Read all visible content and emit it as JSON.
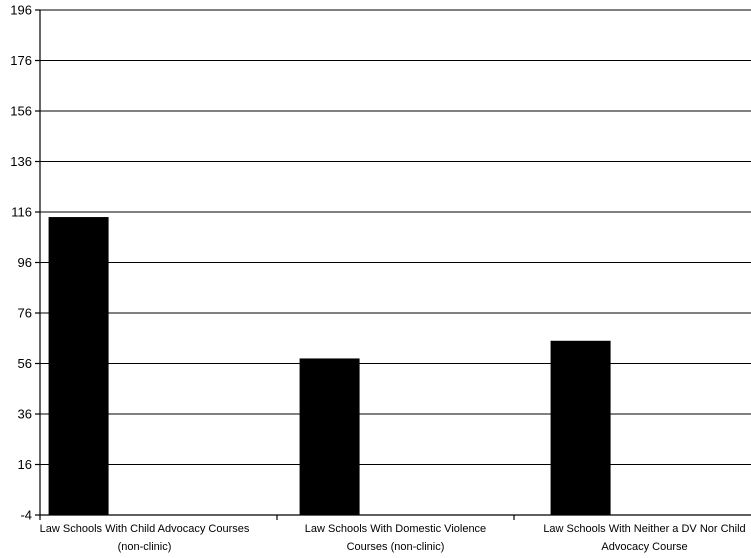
{
  "chart_data": {
    "type": "bar",
    "title": "",
    "xlabel": "",
    "ylabel": "",
    "ylim": [
      -4,
      196
    ],
    "yticks": [
      196,
      176,
      156,
      136,
      116,
      96,
      76,
      56,
      36,
      16,
      -4
    ],
    "grid": true,
    "categories": [
      [
        "Law Schools With Child Advocacy Courses",
        "(non-clinic)"
      ],
      [
        "Law Schools With Domestic Violence",
        "Courses (non-clinic)"
      ],
      [
        "Law Schools With Neither a DV Nor Child",
        "Advocacy Course"
      ]
    ],
    "values": [
      114,
      58,
      65
    ],
    "bar_color": "#000000"
  }
}
